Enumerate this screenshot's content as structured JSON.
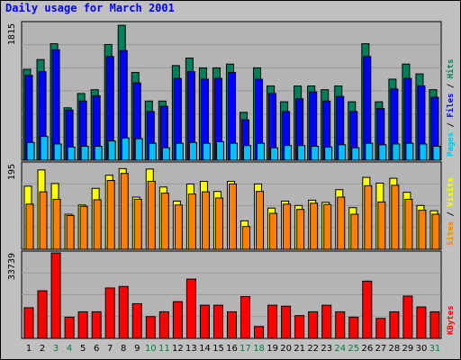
{
  "title": "Daily usage for March 2001",
  "colors": {
    "background": "#c0c0c0",
    "panel": "#b4b4b4",
    "hits": "#00805a",
    "files": "#0000ff",
    "pages": "#00c0ff",
    "visits": "#ffff00",
    "sites": "#ff8000",
    "kbytes": "#ff0000",
    "weekend_label": "#008040",
    "weekday_label": "#000000",
    "title": "#0000ff"
  },
  "chart_data": [
    {
      "type": "bar",
      "panel": "hits-files-pages",
      "ylabel_max": "1815",
      "ylim": [
        0,
        1815
      ],
      "categories": [
        "1",
        "2",
        "3",
        "4",
        "5",
        "6",
        "7",
        "8",
        "9",
        "10",
        "11",
        "12",
        "13",
        "14",
        "15",
        "16",
        "17",
        "18",
        "19",
        "20",
        "21",
        "22",
        "23",
        "24",
        "25",
        "26",
        "27",
        "28",
        "29",
        "30",
        "31"
      ],
      "weekend": [
        "3",
        "4",
        "10",
        "11",
        "17",
        "18",
        "24",
        "25",
        "31"
      ],
      "legend": [
        {
          "name": "Pages",
          "color": "#00c0ff"
        },
        {
          "name": "Files",
          "color": "#0000ff"
        },
        {
          "name": "Hits",
          "color": "#00805a"
        }
      ],
      "series": [
        {
          "name": "Hits",
          "values": [
            1205,
            1335,
            1545,
            695,
            885,
            935,
            1535,
            1790,
            1165,
            785,
            785,
            1255,
            1355,
            1225,
            1225,
            1275,
            635,
            1225,
            985,
            775,
            985,
            985,
            935,
            985,
            775,
            1545,
            775,
            1075,
            1275,
            1145,
            935
          ]
        },
        {
          "name": "Files",
          "values": [
            1125,
            1175,
            1465,
            665,
            785,
            855,
            1375,
            1455,
            1025,
            645,
            715,
            1085,
            1175,
            1075,
            1085,
            1165,
            535,
            1075,
            885,
            645,
            815,
            905,
            785,
            845,
            645,
            1375,
            685,
            945,
            1085,
            985,
            835
          ]
        },
        {
          "name": "Pages",
          "values": [
            235,
            315,
            215,
            175,
            185,
            185,
            255,
            295,
            285,
            225,
            165,
            225,
            235,
            225,
            245,
            225,
            195,
            225,
            165,
            195,
            195,
            185,
            175,
            205,
            165,
            225,
            205,
            215,
            225,
            215,
            185
          ]
        }
      ]
    },
    {
      "type": "bar",
      "panel": "visits-sites",
      "ylabel_max": "195",
      "ylim": [
        0,
        195
      ],
      "categories": [
        "1",
        "2",
        "3",
        "4",
        "5",
        "6",
        "7",
        "8",
        "9",
        "10",
        "11",
        "12",
        "13",
        "14",
        "15",
        "16",
        "17",
        "18",
        "19",
        "20",
        "21",
        "22",
        "23",
        "24",
        "25",
        "26",
        "27",
        "28",
        "29",
        "30",
        "31"
      ],
      "legend": [
        {
          "name": "Sites",
          "color": "#ff8000"
        },
        {
          "name": "Visits",
          "color": "#ffff00"
        }
      ],
      "series": [
        {
          "name": "Visits",
          "values": [
            144,
            181,
            150,
            80,
            101,
            139,
            169,
            184,
            119,
            183,
            142,
            110,
            149,
            155,
            132,
            155,
            65,
            149,
            94,
            110,
            100,
            112,
            107,
            136,
            95,
            164,
            151,
            162,
            130,
            100,
            88
          ]
        },
        {
          "name": "Sites",
          "values": [
            103,
            131,
            114,
            77,
            98,
            113,
            157,
            173,
            114,
            155,
            128,
            101,
            126,
            131,
            117,
            149,
            52,
            132,
            82,
            103,
            91,
            105,
            102,
            119,
            80,
            145,
            108,
            146,
            114,
            89,
            80
          ]
        }
      ]
    },
    {
      "type": "bar",
      "panel": "kbytes",
      "ylabel_max": "33739",
      "ylim": [
        0,
        33739
      ],
      "categories": [
        "1",
        "2",
        "3",
        "4",
        "5",
        "6",
        "7",
        "8",
        "9",
        "10",
        "11",
        "12",
        "13",
        "14",
        "15",
        "16",
        "17",
        "18",
        "19",
        "20",
        "21",
        "22",
        "23",
        "24",
        "25",
        "26",
        "27",
        "28",
        "29",
        "30",
        "31"
      ],
      "legend": [
        {
          "name": "KBytes",
          "color": "#ff0000"
        }
      ],
      "series": [
        {
          "name": "KBytes",
          "values": [
            12100,
            18800,
            33700,
            8400,
            10500,
            10500,
            19900,
            20500,
            13700,
            8600,
            10500,
            14500,
            23400,
            13100,
            13100,
            10500,
            16500,
            4700,
            13100,
            12700,
            9000,
            10500,
            13100,
            10500,
            8400,
            22600,
            7900,
            10500,
            16700,
            12400,
            10500
          ]
        }
      ]
    }
  ]
}
